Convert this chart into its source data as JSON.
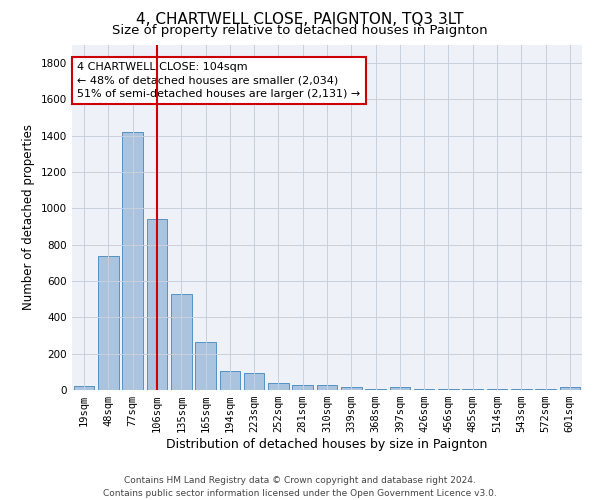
{
  "title": "4, CHARTWELL CLOSE, PAIGNTON, TQ3 3LT",
  "subtitle": "Size of property relative to detached houses in Paignton",
  "xlabel": "Distribution of detached houses by size in Paignton",
  "ylabel": "Number of detached properties",
  "categories": [
    "19sqm",
    "48sqm",
    "77sqm",
    "106sqm",
    "135sqm",
    "165sqm",
    "194sqm",
    "223sqm",
    "252sqm",
    "281sqm",
    "310sqm",
    "339sqm",
    "368sqm",
    "397sqm",
    "426sqm",
    "456sqm",
    "485sqm",
    "514sqm",
    "543sqm",
    "572sqm",
    "601sqm"
  ],
  "values": [
    22,
    740,
    1420,
    940,
    530,
    265,
    105,
    93,
    38,
    28,
    27,
    14,
    4,
    14,
    4,
    4,
    4,
    4,
    4,
    4,
    14
  ],
  "bar_color": "#aac4e0",
  "bar_edge_color": "#5591c5",
  "vline_x_index": 3,
  "vline_color": "#cc0000",
  "annotation_text": "4 CHARTWELL CLOSE: 104sqm\n← 48% of detached houses are smaller (2,034)\n51% of semi-detached houses are larger (2,131) →",
  "annotation_box_color": "#ffffff",
  "annotation_box_edge": "#cc0000",
  "footer_line1": "Contains HM Land Registry data © Crown copyright and database right 2024.",
  "footer_line2": "Contains public sector information licensed under the Open Government Licence v3.0.",
  "title_fontsize": 11,
  "subtitle_fontsize": 9.5,
  "xlabel_fontsize": 9,
  "ylabel_fontsize": 8.5,
  "tick_fontsize": 7.5,
  "annotation_fontsize": 8,
  "footer_fontsize": 6.5,
  "ylim": [
    0,
    1900
  ],
  "background_color": "#ffffff",
  "grid_color": "#c8d0dc",
  "axes_bg_color": "#eef2f8"
}
